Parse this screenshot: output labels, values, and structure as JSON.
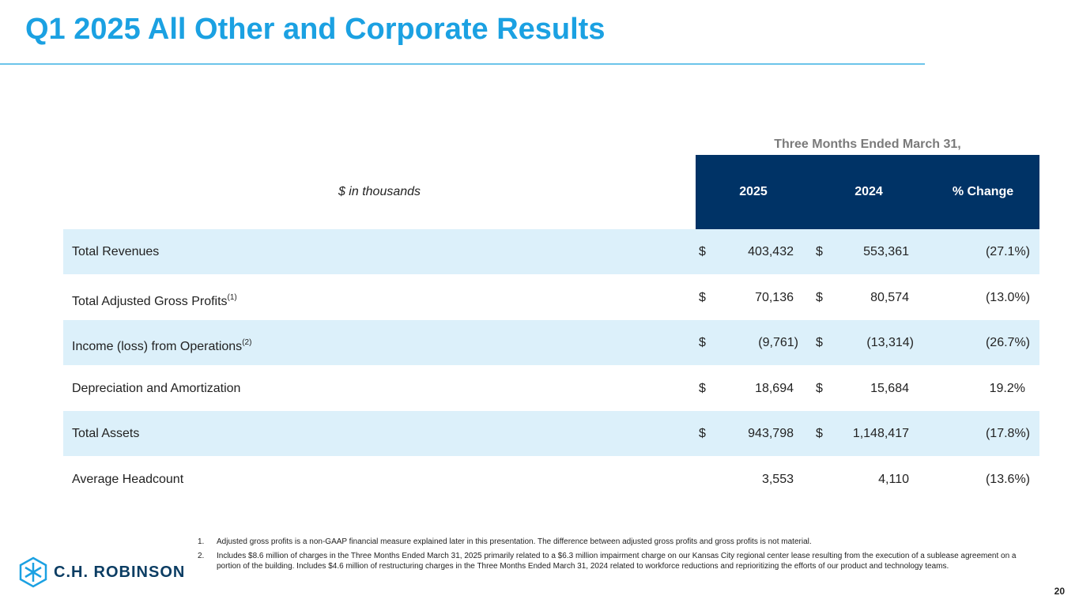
{
  "header": {
    "title": "Q1 2025 All Other and Corporate Results"
  },
  "table": {
    "group_header": "Three Months Ended March 31,",
    "unit_label": "$ in thousands",
    "columns": [
      "2025",
      "2024",
      "% Change"
    ],
    "rows": [
      {
        "label": "Total Revenues",
        "currency": "$",
        "v2025": "403,432",
        "v2024": "553,361",
        "change": "(27.1%)"
      },
      {
        "label": "Total Adjusted Gross Profits",
        "note": "(1)",
        "currency": "$",
        "v2025": "70,136",
        "v2024": "80,574",
        "change": "(13.0%)"
      },
      {
        "label": "Income (loss) from Operations",
        "note": "(2)",
        "currency": "$",
        "v2025": "(9,761)",
        "v2024": "(13,314)",
        "change": "(26.7%)"
      },
      {
        "label": "Depreciation and Amortization",
        "currency": "$",
        "v2025": "18,694",
        "v2024": "15,684",
        "change": "19.2%"
      },
      {
        "label": "Total Assets",
        "currency": "$",
        "v2025": "943,798",
        "v2024": "1,148,417",
        "change": "(17.8%)"
      },
      {
        "label": "Average Headcount",
        "v2025": "3,553",
        "v2024": "4,110",
        "change": "(13.6%)"
      }
    ]
  },
  "footnotes": [
    {
      "number": "1.",
      "text": "Adjusted gross profits is a non-GAAP financial measure explained later in this presentation. The difference between adjusted gross profits and gross profits is not material."
    },
    {
      "number": "2.",
      "text": "Includes $8.6 million of charges in the Three Months Ended March 31, 2025 primarily related to a $6.3 million impairment charge on our Kansas City regional center lease resulting from the execution of a sublease agreement on a portion of the building. Includes $4.6 million of restructuring charges in the Three Months Ended March 31, 2024 related to workforce reductions and reprioritizing the efforts of our product and technology teams."
    }
  ],
  "logo": {
    "text": "C.H. ROBINSON"
  },
  "page_number": "20"
}
